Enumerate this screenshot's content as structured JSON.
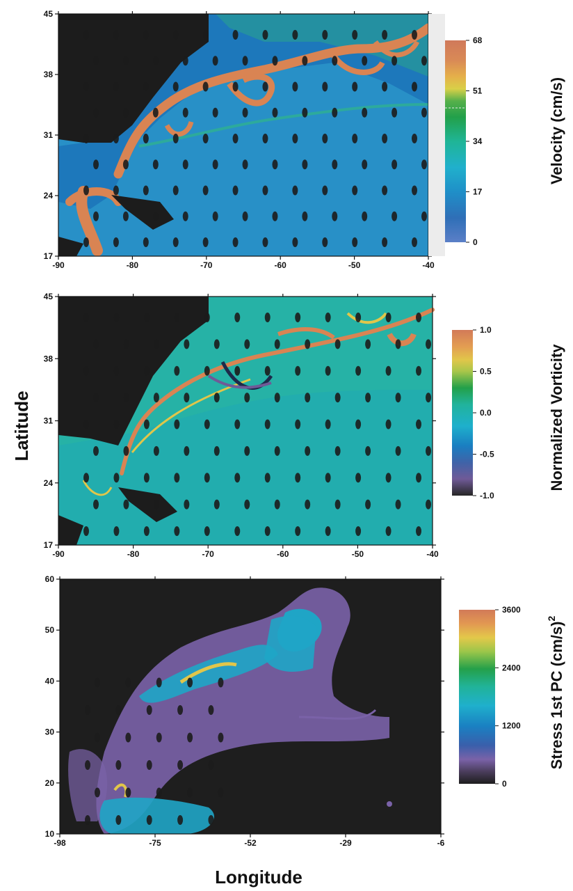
{
  "figure": {
    "ylabel": "Latitude",
    "xlabel": "Longitude"
  },
  "chart_data": [
    {
      "type": "heatmap",
      "panel": "velocity",
      "xlim": [
        -90,
        -40
      ],
      "ylim": [
        17,
        45
      ],
      "x_ticks": [
        "-90",
        "-80",
        "-70",
        "-60",
        "-50",
        "-40"
      ],
      "y_ticks": [
        "45",
        "38",
        "31",
        "24",
        "17"
      ],
      "colorbar": {
        "title": "Velocity (cm/s)",
        "ticks": [
          "68",
          "51",
          "34",
          "17",
          "0"
        ],
        "range": [
          0,
          68
        ]
      },
      "colors": {
        "land": "#1c1c1c",
        "low": "#3a7fc4",
        "mid": "#17a8c0",
        "high": "#d98453"
      }
    },
    {
      "type": "heatmap",
      "panel": "vorticity",
      "xlim": [
        -90,
        -40
      ],
      "ylim": [
        17,
        45
      ],
      "x_ticks": [
        "-90",
        "-80",
        "-70",
        "-60",
        "-50",
        "-40"
      ],
      "y_ticks": [
        "45",
        "38",
        "31",
        "24",
        "17"
      ],
      "colorbar": {
        "title": "Normalized Vorticity",
        "ticks": [
          "1.0",
          "0.5",
          "0.0",
          "-0.5",
          "-1.0"
        ],
        "range": [
          -1.0,
          1.0
        ]
      },
      "colors": {
        "land": "#1c1c1c",
        "low": "#2a9fb6",
        "mid": "#22b2a0",
        "high": "#d98453"
      }
    },
    {
      "type": "heatmap",
      "panel": "stress",
      "xlim": [
        -98,
        -6
      ],
      "ylim": [
        10,
        60
      ],
      "x_ticks": [
        "-98",
        "-75",
        "-52",
        "-29",
        "-6"
      ],
      "y_ticks": [
        "60",
        "50",
        "40",
        "30",
        "20",
        "10"
      ],
      "colorbar": {
        "title": "Stress 1st PC (cm/s)",
        "title_superscript": "2",
        "ticks": [
          "3600",
          "2400",
          "1200",
          "0"
        ],
        "range": [
          0,
          3600
        ]
      },
      "colors": {
        "land": "#1c1c1c",
        "low": "#7a60a6",
        "mid": "#1fa5c6",
        "high": "#d98453"
      }
    }
  ]
}
